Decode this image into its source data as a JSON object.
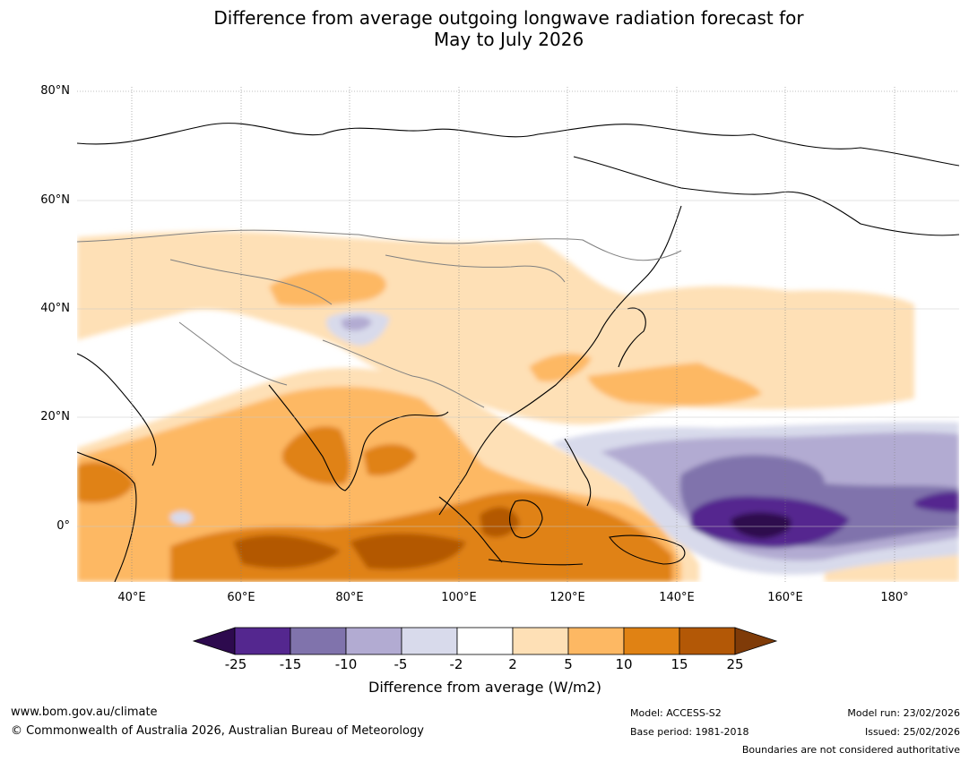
{
  "title": {
    "line1": "Difference from average outgoing longwave radiation forecast for",
    "line2": "May to July 2026"
  },
  "map": {
    "lat_labels": [
      "80°N",
      "60°N",
      "40°N",
      "20°N",
      "0°"
    ],
    "lon_labels": [
      "40°E",
      "60°E",
      "80°E",
      "100°E",
      "120°E",
      "140°E",
      "160°E",
      "180°"
    ],
    "lat_range": [
      -10,
      80
    ],
    "lon_range": [
      30,
      192
    ]
  },
  "colorbar": {
    "ticks": [
      "-25",
      "-15",
      "-10",
      "-5",
      "-2",
      "2",
      "5",
      "10",
      "15",
      "25"
    ],
    "colors": {
      "below_-25": "#2d0a4e",
      "-25_-15": "#54278f",
      "-15_-10": "#8073ac",
      "-10_-5": "#b2abd2",
      "-5_-2": "#d8daeb",
      "-2_2": "#ffffff",
      "2_5": "#fee0b6",
      "5_10": "#fdb863",
      "10_15": "#e08214",
      "15_25": "#b35806",
      "above_25": "#7f3b08"
    },
    "label": "Difference from average (W/m2)"
  },
  "footer": {
    "website": "www.bom.gov.au/climate",
    "copyright": "© Commonwealth of Australia 2026, Australian Bureau of Meteorology",
    "model": "Model: ACCESS-S2",
    "base_period": "Base period: 1981-2018",
    "model_run": "Model run: 23/02/2026",
    "issued": "Issued: 25/02/2026",
    "disclaimer": "Boundaries are not considered authoritative"
  }
}
